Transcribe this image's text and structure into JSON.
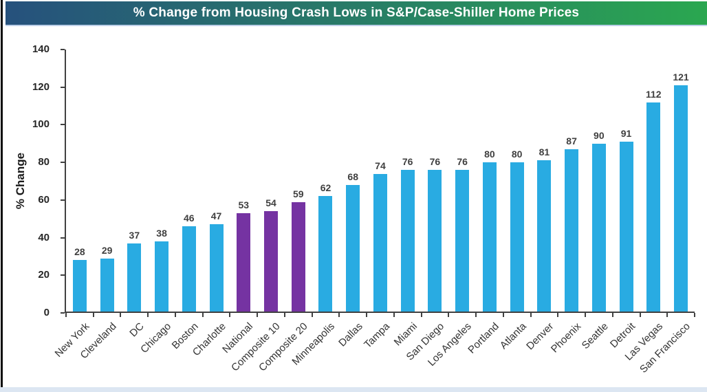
{
  "header": {
    "title": "% Change from Housing Crash Lows in S&P/Case-Shiller Home Prices",
    "gradient_left": "#26517D",
    "gradient_right": "#2AA750",
    "text_color": "#FFFFFF"
  },
  "chart_data": {
    "type": "bar",
    "title": "% Change from Housing Crash Lows in S&P/Case-Shiller Home Prices",
    "xlabel": "",
    "ylabel": "% Change",
    "ylim": [
      0,
      140
    ],
    "ytick_step": 20,
    "grid": false,
    "legend": false,
    "value_labels_shown": true,
    "bar_color": "#29ABE2",
    "highlight_color": "#7533A2",
    "highlighted_categories": [
      "National",
      "Composite 10",
      "Composite 20"
    ],
    "categories": [
      "New York",
      "Cleveland",
      "DC",
      "Chicago",
      "Boston",
      "Charlotte",
      "National",
      "Composite 10",
      "Composite 20",
      "Minneapolis",
      "Dallas",
      "Tampa",
      "Miami",
      "San Diego",
      "Los Angeles",
      "Portland",
      "Atlanta",
      "Denver",
      "Phoenix",
      "Seattle",
      "Detroit",
      "Las Vegas",
      "San Francisco"
    ],
    "values": [
      28,
      29,
      37,
      38,
      46,
      47,
      53,
      54,
      59,
      62,
      68,
      74,
      76,
      76,
      76,
      80,
      80,
      81,
      87,
      90,
      91,
      112,
      121
    ]
  }
}
